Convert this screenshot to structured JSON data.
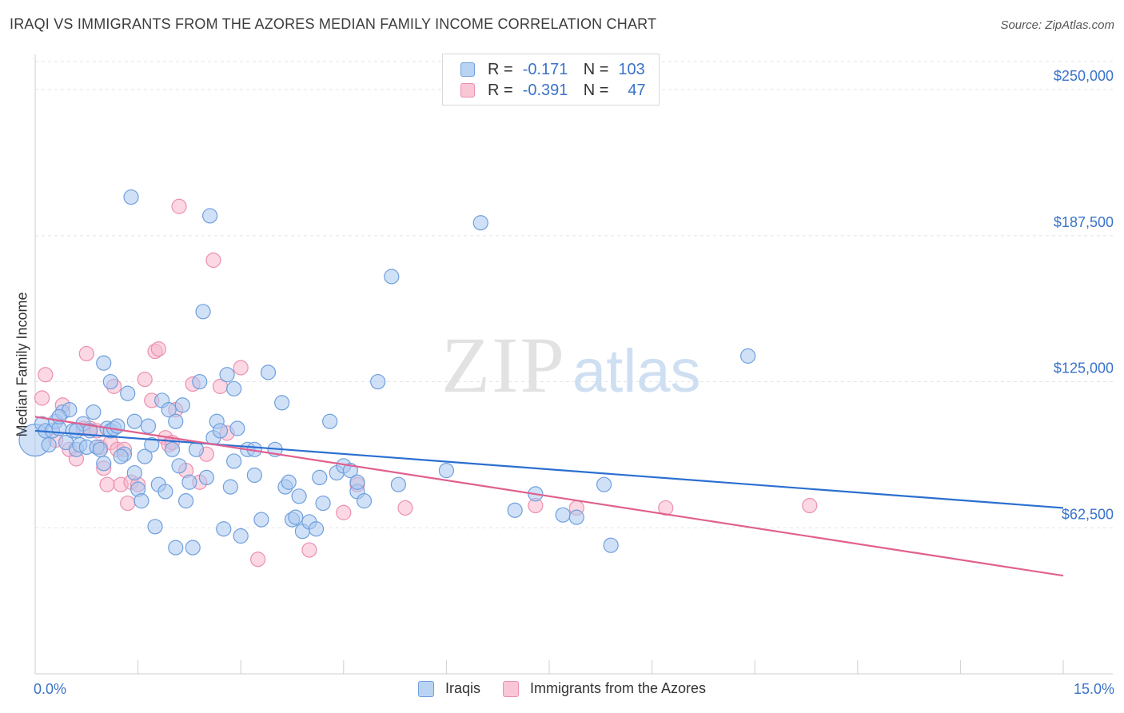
{
  "title": "IRAQI VS IMMIGRANTS FROM THE AZORES MEDIAN FAMILY INCOME CORRELATION CHART",
  "source": "Source: ZipAtlas.com",
  "watermark": {
    "zip": "ZIP",
    "atlas": "atlas"
  },
  "legend": [
    {
      "r_label": "R =",
      "r_value": "-0.171",
      "n_label": "N =",
      "n_value": "103"
    },
    {
      "r_label": "R =",
      "r_value": "-0.391",
      "n_label": "N =",
      "n_value": "47"
    }
  ],
  "chart_data": {
    "type": "scatter",
    "ylabel": "Median Family Income",
    "xlim": [
      0,
      15
    ],
    "ylim": [
      0,
      262000
    ],
    "x_tick_labels": {
      "min": "0.0%",
      "max": "15.0%"
    },
    "y_ticks": [
      62500,
      125000,
      187500,
      250000
    ],
    "y_tick_labels": [
      "$62,500",
      "$125,000",
      "$187,500",
      "$250,000"
    ],
    "grid": true,
    "legend_position": "top-center",
    "colors": {
      "iraqis_fill": "#a9c8f0",
      "iraqis_stroke": "#6f9fdd",
      "iraqis_line": "#2b6fd0",
      "azores_fill": "#f7b8cc",
      "azores_stroke": "#ec8fb0",
      "azores_line": "#e0608f",
      "axis_text": "#3a73c8"
    },
    "series": [
      {
        "name": "Iraqis",
        "trend": {
          "x": [
            0,
            15
          ],
          "y": [
            104000,
            71000
          ]
        },
        "points": [
          [
            0.0,
            100000
          ],
          [
            0.1,
            107000
          ],
          [
            0.15,
            104000
          ],
          [
            0.2,
            98000
          ],
          [
            0.25,
            104000
          ],
          [
            0.3,
            108000
          ],
          [
            0.35,
            105000
          ],
          [
            0.4,
            112000
          ],
          [
            0.45,
            99000
          ],
          [
            0.5,
            113000
          ],
          [
            0.55,
            104000
          ],
          [
            0.6,
            96000
          ],
          [
            0.65,
            98000
          ],
          [
            0.7,
            107000
          ],
          [
            0.75,
            97000
          ],
          [
            0.8,
            104000
          ],
          [
            0.85,
            112000
          ],
          [
            0.9,
            97000
          ],
          [
            0.95,
            96000
          ],
          [
            1.0,
            90000
          ],
          [
            1.05,
            105000
          ],
          [
            1.1,
            104000
          ],
          [
            1.15,
            105000
          ],
          [
            1.2,
            106000
          ],
          [
            1.0,
            133000
          ],
          [
            1.1,
            125000
          ],
          [
            1.3,
            94000
          ],
          [
            1.35,
            120000
          ],
          [
            1.4,
            204000
          ],
          [
            1.45,
            86000
          ],
          [
            1.5,
            79000
          ],
          [
            1.55,
            74000
          ],
          [
            1.6,
            93000
          ],
          [
            1.65,
            106000
          ],
          [
            1.7,
            98000
          ],
          [
            1.75,
            63000
          ],
          [
            1.8,
            81000
          ],
          [
            1.85,
            117000
          ],
          [
            1.9,
            78000
          ],
          [
            1.95,
            113000
          ],
          [
            2.0,
            96000
          ],
          [
            2.05,
            54000
          ],
          [
            2.1,
            89000
          ],
          [
            2.15,
            115000
          ],
          [
            2.2,
            74000
          ],
          [
            2.25,
            82000
          ],
          [
            2.3,
            54000
          ],
          [
            2.35,
            96000
          ],
          [
            2.4,
            125000
          ],
          [
            2.45,
            155000
          ],
          [
            2.5,
            84000
          ],
          [
            2.55,
            196000
          ],
          [
            2.6,
            101000
          ],
          [
            2.65,
            108000
          ],
          [
            2.7,
            104000
          ],
          [
            2.75,
            62000
          ],
          [
            2.8,
            128000
          ],
          [
            2.85,
            80000
          ],
          [
            2.9,
            91000
          ],
          [
            2.95,
            105000
          ],
          [
            3.0,
            59000
          ],
          [
            3.1,
            96000
          ],
          [
            3.2,
            85000
          ],
          [
            3.3,
            66000
          ],
          [
            3.4,
            129000
          ],
          [
            3.5,
            96000
          ],
          [
            3.6,
            116000
          ],
          [
            3.65,
            80000
          ],
          [
            3.7,
            82000
          ],
          [
            3.75,
            66000
          ],
          [
            3.8,
            67000
          ],
          [
            3.85,
            76000
          ],
          [
            3.9,
            61000
          ],
          [
            4.0,
            65000
          ],
          [
            4.1,
            62000
          ],
          [
            4.2,
            73000
          ],
          [
            4.3,
            108000
          ],
          [
            4.4,
            86000
          ],
          [
            4.5,
            89000
          ],
          [
            4.6,
            87000
          ],
          [
            4.7,
            78000
          ],
          [
            4.8,
            74000
          ],
          [
            5.0,
            125000
          ],
          [
            5.2,
            170000
          ],
          [
            5.3,
            81000
          ],
          [
            6.0,
            87000
          ],
          [
            6.5,
            193000
          ],
          [
            7.0,
            70000
          ],
          [
            7.3,
            77000
          ],
          [
            7.7,
            68000
          ],
          [
            7.9,
            67000
          ],
          [
            8.3,
            81000
          ],
          [
            8.4,
            55000
          ],
          [
            10.4,
            136000
          ],
          [
            0.35,
            110000
          ],
          [
            0.6,
            104000
          ],
          [
            1.25,
            93000
          ],
          [
            1.45,
            108000
          ],
          [
            2.05,
            108000
          ],
          [
            2.9,
            122000
          ],
          [
            3.2,
            96000
          ],
          [
            4.15,
            84000
          ],
          [
            4.7,
            82000
          ]
        ]
      },
      {
        "name": "Immigrants from the Azores",
        "trend": {
          "x": [
            0,
            15
          ],
          "y": [
            110000,
            42000
          ]
        },
        "points": [
          [
            0.1,
            118000
          ],
          [
            0.15,
            128000
          ],
          [
            0.3,
            100000
          ],
          [
            0.4,
            115000
          ],
          [
            0.5,
            96000
          ],
          [
            0.6,
            92000
          ],
          [
            0.7,
            105000
          ],
          [
            0.75,
            137000
          ],
          [
            0.8,
            105000
          ],
          [
            0.9,
            104000
          ],
          [
            0.95,
            97000
          ],
          [
            1.0,
            88000
          ],
          [
            1.05,
            81000
          ],
          [
            1.1,
            99000
          ],
          [
            1.15,
            123000
          ],
          [
            1.2,
            96000
          ],
          [
            1.25,
            81000
          ],
          [
            1.3,
            96000
          ],
          [
            1.35,
            73000
          ],
          [
            1.4,
            82000
          ],
          [
            1.5,
            81000
          ],
          [
            1.6,
            126000
          ],
          [
            1.7,
            117000
          ],
          [
            1.75,
            138000
          ],
          [
            1.8,
            139000
          ],
          [
            1.9,
            101000
          ],
          [
            1.95,
            98000
          ],
          [
            2.0,
            99000
          ],
          [
            2.1,
            200000
          ],
          [
            2.2,
            87000
          ],
          [
            2.3,
            124000
          ],
          [
            2.4,
            82000
          ],
          [
            2.5,
            94000
          ],
          [
            2.6,
            177000
          ],
          [
            2.7,
            123000
          ],
          [
            2.8,
            103000
          ],
          [
            3.0,
            131000
          ],
          [
            3.25,
            49000
          ],
          [
            4.0,
            53000
          ],
          [
            4.5,
            69000
          ],
          [
            4.7,
            81000
          ],
          [
            5.4,
            71000
          ],
          [
            7.3,
            72000
          ],
          [
            7.9,
            71000
          ],
          [
            9.2,
            71000
          ],
          [
            11.3,
            72000
          ],
          [
            2.05,
            113000
          ]
        ]
      }
    ]
  }
}
